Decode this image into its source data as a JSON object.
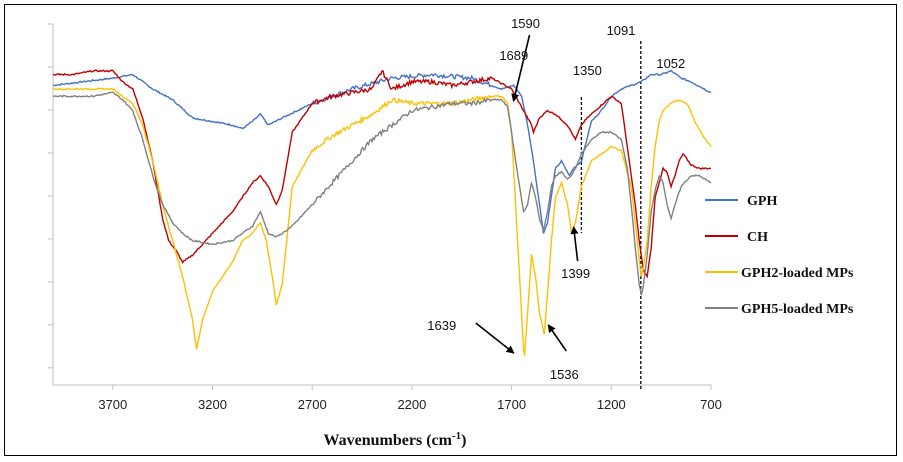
{
  "chart_data": {
    "type": "line",
    "title": "",
    "xlabel": "Wavenumbers (cm-1)",
    "xlabel_main": "Wavenumbers (cm",
    "xlabel_sup": "-1",
    "xlabel_close": ")",
    "ylabel": "",
    "xlim": [
      4000,
      700
    ],
    "x_reversed": true,
    "xticks": [
      "3700",
      "3200",
      "2700",
      "2200",
      "1700",
      "1200",
      "700"
    ],
    "grid": false,
    "legend_position": "right",
    "series": [
      {
        "name": "GPH",
        "color": "#4472c4",
        "points": [
          [
            4000,
            0.83
          ],
          [
            3850,
            0.84
          ],
          [
            3700,
            0.85
          ],
          [
            3600,
            0.86
          ],
          [
            3500,
            0.82
          ],
          [
            3400,
            0.79
          ],
          [
            3300,
            0.74
          ],
          [
            3200,
            0.73
          ],
          [
            3100,
            0.72
          ],
          [
            3050,
            0.71
          ],
          [
            3000,
            0.73
          ],
          [
            2960,
            0.75
          ],
          [
            2920,
            0.72
          ],
          [
            2850,
            0.74
          ],
          [
            2700,
            0.78
          ],
          [
            2500,
            0.82
          ],
          [
            2300,
            0.85
          ],
          [
            2100,
            0.86
          ],
          [
            1900,
            0.85
          ],
          [
            1750,
            0.82
          ],
          [
            1689,
            0.83
          ],
          [
            1650,
            0.8
          ],
          [
            1620,
            0.72
          ],
          [
            1590,
            0.62
          ],
          [
            1560,
            0.5
          ],
          [
            1540,
            0.42
          ],
          [
            1520,
            0.45
          ],
          [
            1480,
            0.6
          ],
          [
            1450,
            0.62
          ],
          [
            1410,
            0.58
          ],
          [
            1390,
            0.6
          ],
          [
            1350,
            0.62
          ],
          [
            1300,
            0.73
          ],
          [
            1250,
            0.76
          ],
          [
            1200,
            0.8
          ],
          [
            1150,
            0.82
          ],
          [
            1100,
            0.83
          ],
          [
            1050,
            0.84
          ],
          [
            1000,
            0.86
          ],
          [
            950,
            0.86
          ],
          [
            900,
            0.87
          ],
          [
            850,
            0.85
          ],
          [
            800,
            0.84
          ],
          [
            700,
            0.81
          ]
        ]
      },
      {
        "name": "CH",
        "color": "#c00000",
        "points": [
          [
            4000,
            0.86
          ],
          [
            3900,
            0.86
          ],
          [
            3800,
            0.87
          ],
          [
            3700,
            0.87
          ],
          [
            3650,
            0.84
          ],
          [
            3600,
            0.82
          ],
          [
            3550,
            0.74
          ],
          [
            3500,
            0.62
          ],
          [
            3450,
            0.46
          ],
          [
            3420,
            0.4
          ],
          [
            3380,
            0.37
          ],
          [
            3350,
            0.34
          ],
          [
            3300,
            0.36
          ],
          [
            3200,
            0.42
          ],
          [
            3100,
            0.48
          ],
          [
            3000,
            0.56
          ],
          [
            2960,
            0.58
          ],
          [
            2920,
            0.55
          ],
          [
            2880,
            0.5
          ],
          [
            2850,
            0.54
          ],
          [
            2800,
            0.7
          ],
          [
            2700,
            0.78
          ],
          [
            2600,
            0.8
          ],
          [
            2500,
            0.81
          ],
          [
            2400,
            0.82
          ],
          [
            2350,
            0.87
          ],
          [
            2300,
            0.82
          ],
          [
            2200,
            0.84
          ],
          [
            2100,
            0.84
          ],
          [
            2000,
            0.83
          ],
          [
            1900,
            0.84
          ],
          [
            1800,
            0.85
          ],
          [
            1700,
            0.82
          ],
          [
            1660,
            0.78
          ],
          [
            1640,
            0.76
          ],
          [
            1600,
            0.72
          ],
          [
            1590,
            0.7
          ],
          [
            1560,
            0.74
          ],
          [
            1520,
            0.76
          ],
          [
            1480,
            0.75
          ],
          [
            1420,
            0.72
          ],
          [
            1380,
            0.68
          ],
          [
            1350,
            0.72
          ],
          [
            1320,
            0.74
          ],
          [
            1280,
            0.76
          ],
          [
            1240,
            0.78
          ],
          [
            1200,
            0.8
          ],
          [
            1150,
            0.78
          ],
          [
            1120,
            0.66
          ],
          [
            1100,
            0.58
          ],
          [
            1080,
            0.5
          ],
          [
            1060,
            0.4
          ],
          [
            1040,
            0.32
          ],
          [
            1020,
            0.3
          ],
          [
            1000,
            0.38
          ],
          [
            980,
            0.52
          ],
          [
            960,
            0.56
          ],
          [
            940,
            0.6
          ],
          [
            920,
            0.59
          ],
          [
            900,
            0.55
          ],
          [
            880,
            0.58
          ],
          [
            860,
            0.62
          ],
          [
            840,
            0.64
          ],
          [
            800,
            0.61
          ],
          [
            760,
            0.6
          ],
          [
            700,
            0.6
          ]
        ]
      },
      {
        "name": "GPH2-loaded MPs",
        "color": "#ffc000",
        "points": [
          [
            4000,
            0.82
          ],
          [
            3900,
            0.82
          ],
          [
            3800,
            0.82
          ],
          [
            3700,
            0.82
          ],
          [
            3650,
            0.8
          ],
          [
            3600,
            0.78
          ],
          [
            3550,
            0.72
          ],
          [
            3500,
            0.62
          ],
          [
            3450,
            0.5
          ],
          [
            3400,
            0.4
          ],
          [
            3350,
            0.3
          ],
          [
            3300,
            0.18
          ],
          [
            3280,
            0.1
          ],
          [
            3250,
            0.18
          ],
          [
            3200,
            0.26
          ],
          [
            3100,
            0.34
          ],
          [
            3050,
            0.4
          ],
          [
            3000,
            0.42
          ],
          [
            2960,
            0.45
          ],
          [
            2930,
            0.4
          ],
          [
            2900,
            0.3
          ],
          [
            2880,
            0.22
          ],
          [
            2850,
            0.28
          ],
          [
            2800,
            0.55
          ],
          [
            2700,
            0.65
          ],
          [
            2600,
            0.69
          ],
          [
            2500,
            0.72
          ],
          [
            2400,
            0.75
          ],
          [
            2300,
            0.79
          ],
          [
            2200,
            0.78
          ],
          [
            2100,
            0.78
          ],
          [
            2000,
            0.78
          ],
          [
            1900,
            0.79
          ],
          [
            1800,
            0.8
          ],
          [
            1750,
            0.8
          ],
          [
            1720,
            0.78
          ],
          [
            1700,
            0.7
          ],
          [
            1680,
            0.5
          ],
          [
            1660,
            0.3
          ],
          [
            1640,
            0.1
          ],
          [
            1635,
            0.08
          ],
          [
            1620,
            0.2
          ],
          [
            1600,
            0.36
          ],
          [
            1580,
            0.3
          ],
          [
            1560,
            0.2
          ],
          [
            1540,
            0.15
          ],
          [
            1536,
            0.14
          ],
          [
            1520,
            0.25
          ],
          [
            1500,
            0.4
          ],
          [
            1480,
            0.52
          ],
          [
            1450,
            0.56
          ],
          [
            1420,
            0.5
          ],
          [
            1399,
            0.42
          ],
          [
            1380,
            0.45
          ],
          [
            1350,
            0.55
          ],
          [
            1300,
            0.62
          ],
          [
            1250,
            0.64
          ],
          [
            1200,
            0.66
          ],
          [
            1150,
            0.65
          ],
          [
            1100,
            0.55
          ],
          [
            1080,
            0.45
          ],
          [
            1060,
            0.35
          ],
          [
            1050,
            0.3
          ],
          [
            1040,
            0.32
          ],
          [
            1020,
            0.4
          ],
          [
            1000,
            0.55
          ],
          [
            980,
            0.66
          ],
          [
            960,
            0.73
          ],
          [
            940,
            0.76
          ],
          [
            920,
            0.77
          ],
          [
            900,
            0.78
          ],
          [
            860,
            0.79
          ],
          [
            820,
            0.78
          ],
          [
            780,
            0.73
          ],
          [
            740,
            0.69
          ],
          [
            700,
            0.66
          ]
        ]
      },
      {
        "name": "GPH5-loaded MPs",
        "color": "#808080",
        "points": [
          [
            4000,
            0.8
          ],
          [
            3900,
            0.8
          ],
          [
            3800,
            0.8
          ],
          [
            3700,
            0.81
          ],
          [
            3650,
            0.79
          ],
          [
            3600,
            0.76
          ],
          [
            3550,
            0.68
          ],
          [
            3500,
            0.58
          ],
          [
            3450,
            0.5
          ],
          [
            3400,
            0.45
          ],
          [
            3350,
            0.42
          ],
          [
            3300,
            0.4
          ],
          [
            3200,
            0.39
          ],
          [
            3100,
            0.4
          ],
          [
            3050,
            0.42
          ],
          [
            3000,
            0.44
          ],
          [
            2960,
            0.48
          ],
          [
            2920,
            0.42
          ],
          [
            2880,
            0.41
          ],
          [
            2850,
            0.42
          ],
          [
            2800,
            0.44
          ],
          [
            2700,
            0.5
          ],
          [
            2600,
            0.56
          ],
          [
            2500,
            0.62
          ],
          [
            2400,
            0.68
          ],
          [
            2300,
            0.72
          ],
          [
            2200,
            0.76
          ],
          [
            2100,
            0.77
          ],
          [
            2000,
            0.78
          ],
          [
            1900,
            0.78
          ],
          [
            1800,
            0.79
          ],
          [
            1750,
            0.79
          ],
          [
            1720,
            0.77
          ],
          [
            1700,
            0.7
          ],
          [
            1680,
            0.62
          ],
          [
            1660,
            0.55
          ],
          [
            1640,
            0.48
          ],
          [
            1620,
            0.5
          ],
          [
            1600,
            0.56
          ],
          [
            1580,
            0.52
          ],
          [
            1560,
            0.46
          ],
          [
            1540,
            0.43
          ],
          [
            1520,
            0.48
          ],
          [
            1500,
            0.55
          ],
          [
            1480,
            0.58
          ],
          [
            1450,
            0.59
          ],
          [
            1420,
            0.57
          ],
          [
            1400,
            0.58
          ],
          [
            1380,
            0.6
          ],
          [
            1350,
            0.64
          ],
          [
            1300,
            0.68
          ],
          [
            1250,
            0.7
          ],
          [
            1200,
            0.7
          ],
          [
            1150,
            0.68
          ],
          [
            1120,
            0.6
          ],
          [
            1100,
            0.5
          ],
          [
            1080,
            0.38
          ],
          [
            1060,
            0.28
          ],
          [
            1050,
            0.25
          ],
          [
            1040,
            0.27
          ],
          [
            1020,
            0.36
          ],
          [
            1000,
            0.48
          ],
          [
            980,
            0.54
          ],
          [
            960,
            0.58
          ],
          [
            940,
            0.56
          ],
          [
            920,
            0.5
          ],
          [
            900,
            0.46
          ],
          [
            880,
            0.5
          ],
          [
            850,
            0.55
          ],
          [
            800,
            0.58
          ],
          [
            760,
            0.58
          ],
          [
            700,
            0.56
          ]
        ]
      }
    ],
    "annotations": [
      {
        "text": "1689",
        "x": 1689
      },
      {
        "text": "1590",
        "x": 1590
      },
      {
        "text": "1350",
        "x": 1350
      },
      {
        "text": "1091",
        "x": 1091
      },
      {
        "text": "1052",
        "x": 1052
      },
      {
        "text": "1399",
        "x": 1399
      },
      {
        "text": "1639",
        "x": 1639
      },
      {
        "text": "1536",
        "x": 1536
      }
    ],
    "dashed_reference_lines": [
      1350,
      1052
    ]
  }
}
